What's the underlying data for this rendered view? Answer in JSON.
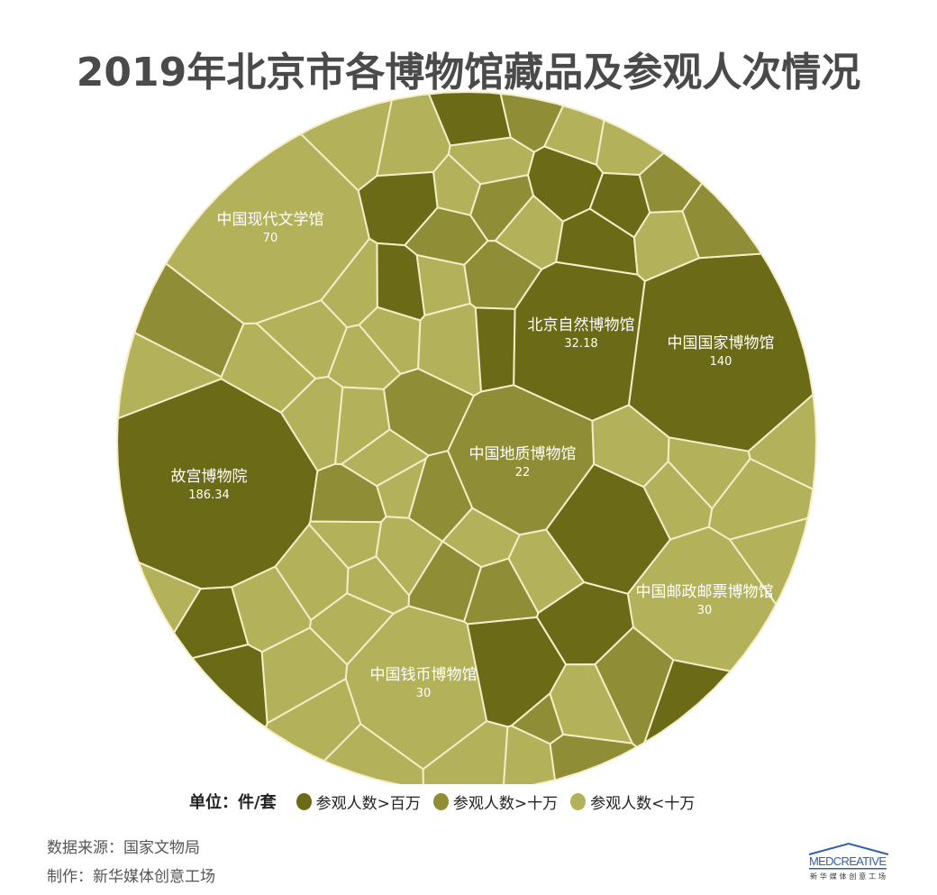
{
  "title": "2019年北京市各博物馆藏品及参观人次情况",
  "chart_data": {
    "type": "voronoi-treemap",
    "title": "2019年北京市各博物馆藏品及参观人次情况",
    "unit_label": "单位：件/套",
    "colors": {
      "gt_million": "#6b6b17",
      "gt_100k": "#8f8e36",
      "lt_100k": "#b3b25a",
      "border": "#f3edc8"
    },
    "legend": [
      {
        "label": "参观人数>百万",
        "color": "#6b6b17",
        "key": "gt_million"
      },
      {
        "label": "参观人数>十万",
        "color": "#8f8e36",
        "key": "gt_100k"
      },
      {
        "label": "参观人数<十万",
        "color": "#b3b25a",
        "key": "lt_100k"
      }
    ],
    "labeled_cells": [
      {
        "name": "故宫博物院",
        "value": "186.34",
        "category": "gt_million"
      },
      {
        "name": "中国国家博物馆",
        "value": "140",
        "category": "gt_million"
      },
      {
        "name": "中国现代文学馆",
        "value": "70",
        "category": "lt_100k"
      },
      {
        "name": "北京自然博物馆",
        "value": "32.18",
        "category": "gt_million"
      },
      {
        "name": "中国钱币博物馆",
        "value": "30",
        "category": "lt_100k"
      },
      {
        "name": "中国邮政邮票博物馆",
        "value": "30",
        "category": "lt_100k"
      },
      {
        "name": "中国地质博物馆",
        "value": "22",
        "category": "gt_100k"
      }
    ]
  },
  "footer": {
    "source": "数据来源：国家文物局",
    "credit": "制作：新华媒体创意工场"
  },
  "logo": {
    "text": "MEDCREATIVE",
    "subtitle": "新华媒体创意工场"
  }
}
